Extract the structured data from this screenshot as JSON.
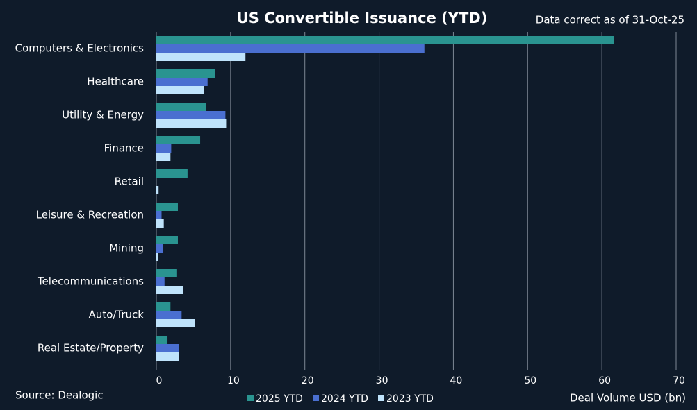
{
  "chart_data": {
    "type": "hbar",
    "title": "US Convertible Issuance (YTD)",
    "note": "Data correct as of 31-Oct-25",
    "source": "Source: Dealogic",
    "x_label": "Deal Volume USD (bn)",
    "categories": [
      "Computers & Electronics",
      "Healthcare",
      "Utility & Energy",
      "Finance",
      "Retail",
      "Leisure & Recreation",
      "Mining",
      "Telecommunications",
      "Auto/Truck",
      "Real Estate/Property"
    ],
    "series": [
      {
        "name": "2025 YTD",
        "color": "#2a9490",
        "values": [
          61.6,
          7.9,
          6.7,
          5.9,
          4.2,
          2.9,
          2.9,
          2.7,
          1.9,
          1.5
        ]
      },
      {
        "name": "2024 YTD",
        "color": "#4a6fd0",
        "values": [
          36.1,
          6.9,
          9.3,
          2.0,
          0,
          0.7,
          0.9,
          1.1,
          3.4,
          3.0
        ]
      },
      {
        "name": "2023 YTD",
        "color": "#bfe3fb",
        "values": [
          12.0,
          6.4,
          9.4,
          1.9,
          0.3,
          1.0,
          0.2,
          3.6,
          5.2,
          3.0
        ]
      }
    ],
    "xlim": [
      0,
      70
    ],
    "xticks": [
      0,
      10,
      20,
      30,
      40,
      50,
      60,
      70
    ],
    "grid": true
  }
}
